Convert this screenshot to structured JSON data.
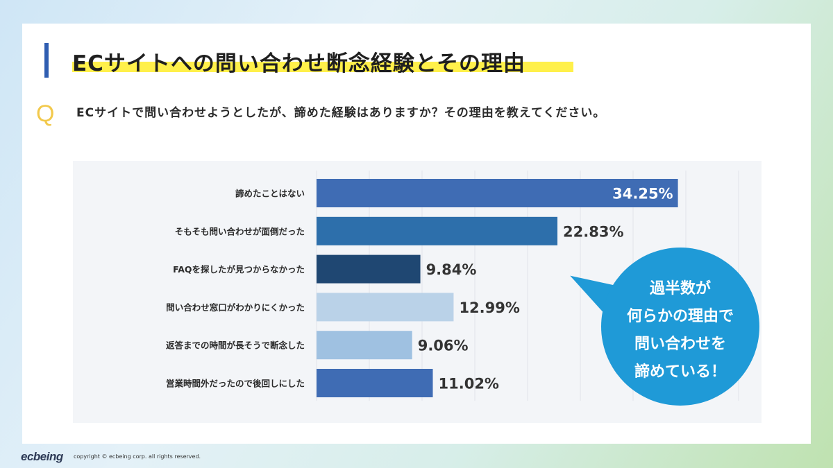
{
  "page": {
    "title": "ECサイトへの問い合わせ断念経験とその理由",
    "question_mark": "Q",
    "question": "ECサイトで問い合わせようとしたが、諦めた経験はありますか？その理由を教えてください。",
    "callout_lines": [
      "過半数が",
      "何らかの理由で",
      "問い合わせを",
      "諦めている！"
    ],
    "logo": "ecbeing",
    "copyright": "copyright © ecbeing corp. all rights reserved."
  },
  "colors": {
    "title_bar": "#2f5db1",
    "title_highlight": "#fff04a",
    "question_mark": "#f2c94c",
    "callout": "#1f9ad7"
  },
  "chart_data": {
    "type": "bar",
    "orientation": "horizontal",
    "categories": [
      "諦めたことはない",
      "そもそも問い合わせが面倒だった",
      "FAQを探したが見つからなかった",
      "問い合わせ窓口がわかりにくかった",
      "返答までの時間が長そうで断念した",
      "営業時間外だったので後回しにした"
    ],
    "values": [
      34.25,
      22.83,
      9.84,
      12.99,
      9.06,
      11.02
    ],
    "value_labels": [
      "34.25%",
      "22.83%",
      "9.84%",
      "12.99%",
      "9.06%",
      "11.02%"
    ],
    "bar_colors": [
      "#3f6cb4",
      "#2d6fab",
      "#1f4772",
      "#bad2e8",
      "#9fc1e1",
      "#3f6cb4"
    ],
    "label_inside": [
      true,
      false,
      false,
      false,
      false,
      false
    ],
    "xlim": [
      0,
      40
    ],
    "grid": true,
    "unit": "%"
  }
}
